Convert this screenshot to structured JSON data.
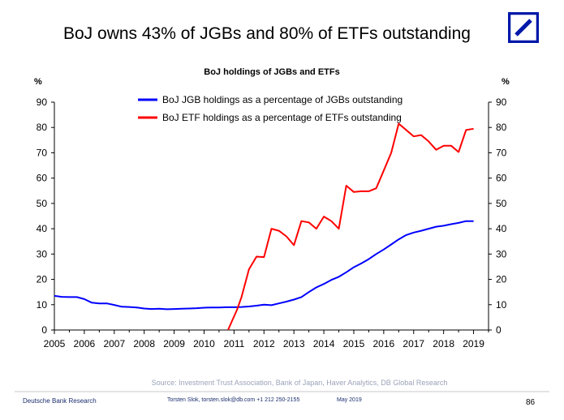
{
  "slide": {
    "title": "BoJ owns 43% of JGBs and 80% of ETFs outstanding",
    "source": "Source: Investment Trust Association, Bank of Japan, Haver Analytics, DB Global Research",
    "footer_left": "Deutsche Bank Research",
    "footer_author": "Torsten Slok, torsten.slok@db.com +1 212 250-2155",
    "footer_date": "May 2019",
    "page_number": "86",
    "logo": "deutsche-bank-logo"
  },
  "chart_data": {
    "type": "line",
    "title": "BoJ holdings of JGBs and ETFs",
    "ylabel_left": "%",
    "ylabel_right": "%",
    "ylim": [
      0,
      90
    ],
    "yticks": [
      0,
      10,
      20,
      30,
      40,
      50,
      60,
      70,
      80,
      90
    ],
    "xlim": [
      2005,
      2019.5
    ],
    "xticks": [
      "2005",
      "2006",
      "2007",
      "2008",
      "2009",
      "2010",
      "2011",
      "2012",
      "2013",
      "2014",
      "2015",
      "2016",
      "2017",
      "2018",
      "2019"
    ],
    "legend_position": "top-center",
    "grid": false,
    "series": [
      {
        "name": "BoJ JGB holdings as a percentage of JGBs outstanding",
        "color": "#0000ff",
        "points": [
          [
            2005.0,
            13.5
          ],
          [
            2005.25,
            13.1
          ],
          [
            2005.5,
            13.0
          ],
          [
            2005.75,
            13.0
          ],
          [
            2006.0,
            12.2
          ],
          [
            2006.25,
            10.8
          ],
          [
            2006.5,
            10.5
          ],
          [
            2006.75,
            10.5
          ],
          [
            2007.0,
            9.9
          ],
          [
            2007.25,
            9.2
          ],
          [
            2007.5,
            9.1
          ],
          [
            2007.75,
            8.9
          ],
          [
            2008.0,
            8.5
          ],
          [
            2008.25,
            8.3
          ],
          [
            2008.5,
            8.4
          ],
          [
            2008.75,
            8.2
          ],
          [
            2009.0,
            8.3
          ],
          [
            2009.25,
            8.4
          ],
          [
            2009.5,
            8.5
          ],
          [
            2009.75,
            8.6
          ],
          [
            2010.0,
            8.8
          ],
          [
            2010.25,
            8.9
          ],
          [
            2010.5,
            8.9
          ],
          [
            2010.75,
            9.0
          ],
          [
            2011.0,
            9.0
          ],
          [
            2011.25,
            9.1
          ],
          [
            2011.5,
            9.3
          ],
          [
            2011.75,
            9.6
          ],
          [
            2012.0,
            10.0
          ],
          [
            2012.25,
            9.8
          ],
          [
            2012.5,
            10.5
          ],
          [
            2012.75,
            11.2
          ],
          [
            2013.0,
            12.0
          ],
          [
            2013.25,
            13.0
          ],
          [
            2013.5,
            15.0
          ],
          [
            2013.75,
            16.8
          ],
          [
            2014.0,
            18.2
          ],
          [
            2014.25,
            19.8
          ],
          [
            2014.5,
            21.0
          ],
          [
            2014.75,
            22.8
          ],
          [
            2015.0,
            24.8
          ],
          [
            2015.25,
            26.3
          ],
          [
            2015.5,
            28.0
          ],
          [
            2015.75,
            30.0
          ],
          [
            2016.0,
            31.8
          ],
          [
            2016.25,
            33.8
          ],
          [
            2016.5,
            35.8
          ],
          [
            2016.75,
            37.5
          ],
          [
            2017.0,
            38.5
          ],
          [
            2017.25,
            39.2
          ],
          [
            2017.5,
            40.0
          ],
          [
            2017.75,
            40.8
          ],
          [
            2018.0,
            41.2
          ],
          [
            2018.25,
            41.8
          ],
          [
            2018.5,
            42.3
          ],
          [
            2018.75,
            43.0
          ],
          [
            2019.0,
            43.0
          ]
        ]
      },
      {
        "name": "BoJ ETF holdings as a percentage of ETFs outstanding",
        "color": "#ff0000",
        "points": [
          [
            2010.8,
            0.0
          ],
          [
            2010.95,
            4.0
          ],
          [
            2011.1,
            8.0
          ],
          [
            2011.25,
            13.0
          ],
          [
            2011.5,
            24.0
          ],
          [
            2011.75,
            29.0
          ],
          [
            2012.0,
            28.8
          ],
          [
            2012.25,
            40.0
          ],
          [
            2012.5,
            39.2
          ],
          [
            2012.75,
            37.0
          ],
          [
            2013.0,
            33.5
          ],
          [
            2013.25,
            43.0
          ],
          [
            2013.5,
            42.5
          ],
          [
            2013.75,
            40.0
          ],
          [
            2014.0,
            44.8
          ],
          [
            2014.25,
            43.0
          ],
          [
            2014.5,
            40.0
          ],
          [
            2014.75,
            57.0
          ],
          [
            2015.0,
            54.5
          ],
          [
            2015.25,
            54.8
          ],
          [
            2015.5,
            54.8
          ],
          [
            2015.75,
            56.0
          ],
          [
            2016.0,
            63.0
          ],
          [
            2016.25,
            70.0
          ],
          [
            2016.5,
            81.5
          ],
          [
            2016.75,
            79.0
          ],
          [
            2017.0,
            76.5
          ],
          [
            2017.25,
            77.0
          ],
          [
            2017.5,
            74.5
          ],
          [
            2017.75,
            71.2
          ],
          [
            2018.0,
            72.8
          ],
          [
            2018.25,
            72.8
          ],
          [
            2018.5,
            70.3
          ],
          [
            2018.75,
            79.0
          ],
          [
            2019.0,
            79.5
          ]
        ]
      }
    ]
  }
}
